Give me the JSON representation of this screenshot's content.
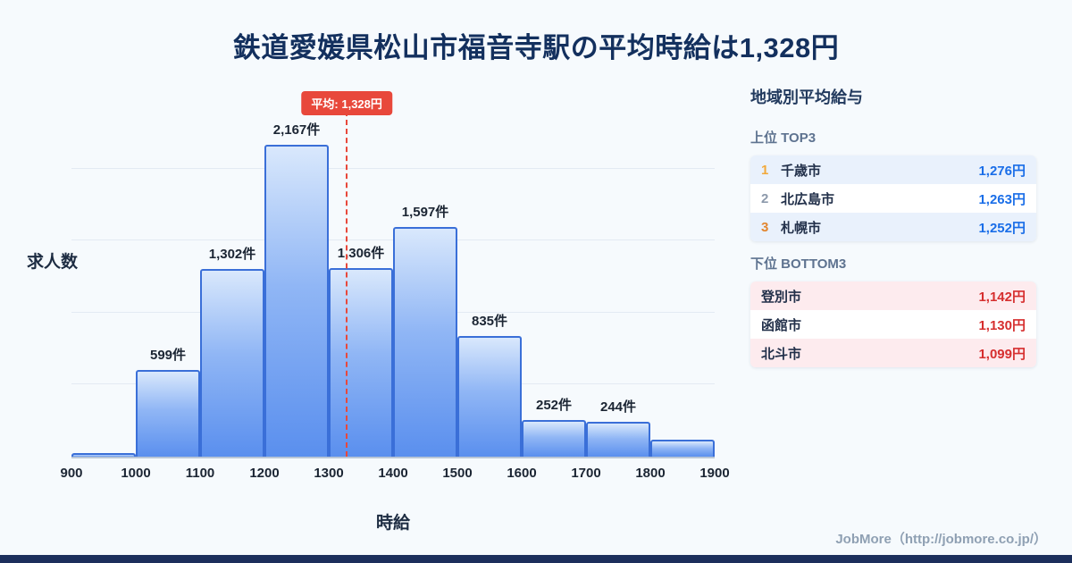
{
  "page": {
    "title": "鉄道愛媛県松山市福音寺駅の平均時給は1,328円",
    "footer_credit": "JobMore（http://jobmore.co.jp/）",
    "background": "#f6fafd",
    "accent_navy": "#1c2f5c"
  },
  "chart_data": {
    "type": "bar",
    "title": "鉄道愛媛県松山市福音寺駅の平均時給は1,328円",
    "xlabel": "時給",
    "ylabel": "求人数",
    "x_min": 900,
    "x_max": 1900,
    "x_ticks": [
      "900",
      "1000",
      "1100",
      "1200",
      "1300",
      "1400",
      "1500",
      "1600",
      "1700",
      "1800",
      "1900"
    ],
    "ylim": [
      0,
      2450
    ],
    "grid_values": [
      500,
      1000,
      1500,
      2000
    ],
    "grid_on": true,
    "legend": "none",
    "bins": [
      {
        "x0": 900,
        "x1": 1000,
        "value": 25,
        "label": ""
      },
      {
        "x0": 1000,
        "x1": 1100,
        "value": 599,
        "label": "599件"
      },
      {
        "x0": 1100,
        "x1": 1200,
        "value": 1302,
        "label": "1,302件"
      },
      {
        "x0": 1200,
        "x1": 1300,
        "value": 2167,
        "label": "2,167件"
      },
      {
        "x0": 1300,
        "x1": 1400,
        "value": 1306,
        "label": "1,306件"
      },
      {
        "x0": 1400,
        "x1": 1500,
        "value": 1597,
        "label": "1,597件"
      },
      {
        "x0": 1500,
        "x1": 1600,
        "value": 835,
        "label": "835件"
      },
      {
        "x0": 1600,
        "x1": 1700,
        "value": 252,
        "label": "252件"
      },
      {
        "x0": 1700,
        "x1": 1800,
        "value": 244,
        "label": "244件"
      },
      {
        "x0": 1800,
        "x1": 1900,
        "value": 120,
        "label": ""
      }
    ],
    "average_line": {
      "value": 1328,
      "label": "平均: 1,328円",
      "color": "#e8483b"
    },
    "bar_border_color": "#3a6fd8",
    "bar_fill_top": "#d9e8fc",
    "bar_fill_bottom": "#5a8fee"
  },
  "sidebar": {
    "title": "地域別平均給与",
    "top3": {
      "heading": "上位 TOP3",
      "value_color": "#1a6ee8",
      "rank_colors": [
        "#f2a93b",
        "#8c99ab",
        "#e2862f"
      ],
      "rows": [
        {
          "rank": "1",
          "city": "千歳市",
          "value": "1,276円"
        },
        {
          "rank": "2",
          "city": "北広島市",
          "value": "1,263円"
        },
        {
          "rank": "3",
          "city": "札幌市",
          "value": "1,252円"
        }
      ]
    },
    "bottom3": {
      "heading": "下位 BOTTOM3",
      "value_color": "#d62f2f",
      "rows": [
        {
          "city": "登別市",
          "value": "1,142円"
        },
        {
          "city": "函館市",
          "value": "1,130円"
        },
        {
          "city": "北斗市",
          "value": "1,099円"
        }
      ]
    }
  }
}
